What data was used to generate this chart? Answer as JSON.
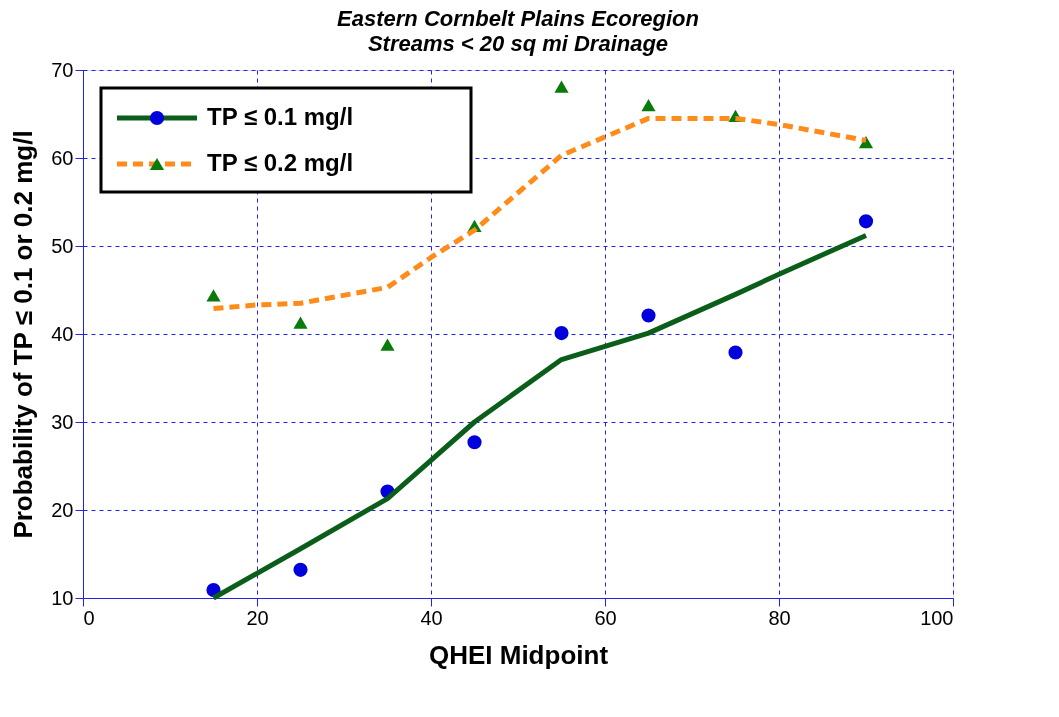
{
  "chart_data": {
    "type": "scatter",
    "title": "Eastern Cornbelt Plains Ecoregion",
    "subtitle": "Streams < 20 sq mi Drainage",
    "xlabel": "QHEI Midpoint",
    "ylabel": "Probability of TP ≤ 0.1 or 0.2 mg/l",
    "xlim": [
      0,
      100
    ],
    "xticks": [
      0,
      20,
      40,
      60,
      80,
      100
    ],
    "ylim": [
      10,
      70
    ],
    "yticks": [
      10,
      20,
      30,
      40,
      50,
      60,
      70
    ],
    "grid": true,
    "legend": "top left",
    "series": [
      {
        "name": "TP ≤ 0.1 mg/l",
        "marker": "circle",
        "color": "#0000dd",
        "x": [
          15,
          25,
          35,
          45,
          55,
          65,
          75,
          90
        ],
        "values": [
          10.9,
          13.2,
          22.1,
          27.7,
          40.1,
          42.1,
          37.9,
          52.8
        ]
      },
      {
        "type": "line",
        "marker": "none",
        "line_style": "solid",
        "color": "#0b5e1a",
        "x": [
          15,
          25,
          35,
          45,
          55,
          65,
          75,
          80,
          90
        ],
        "values": [
          10.0,
          15.6,
          21.3,
          30.0,
          37.1,
          40.1,
          44.5,
          46.8,
          51.2
        ]
      },
      {
        "name": "TP ≤ 0.2 mg/l",
        "marker": "triangle",
        "color": "#0a7a0a",
        "x": [
          15,
          25,
          35,
          45,
          55,
          65,
          75,
          90
        ],
        "values": [
          44.4,
          41.3,
          38.8,
          52.3,
          68.1,
          66.0,
          64.8,
          61.8
        ]
      },
      {
        "type": "line",
        "marker": "none",
        "line_style": "dashed",
        "color": "#ff8c1a",
        "x": [
          15,
          20,
          25,
          35,
          40,
          45,
          55,
          60,
          65,
          75,
          80,
          90
        ],
        "values": [
          42.9,
          43.3,
          43.5,
          45.3,
          48.7,
          51.8,
          60.3,
          62.4,
          64.5,
          64.5,
          63.8,
          62.0
        ]
      }
    ]
  }
}
